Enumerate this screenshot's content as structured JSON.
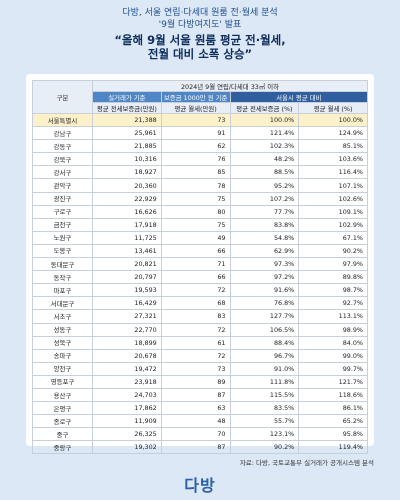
{
  "header": {
    "lines": [
      "다방, 서울 연립·다세대 원룸 전·월세 분석",
      "'9월 다방여지도' 발표"
    ],
    "title": [
      "“올해 9월 서울 원룸 평균 전·월세,",
      "전월 대비 소폭 상승”"
    ]
  },
  "table": {
    "corner": "구분",
    "group": "2024년 9월 연립/다세대 33㎡ 이하",
    "subgroups": [
      "실거래가 기준",
      "보증금 1000만 원 기준",
      "서울시 평균 대비"
    ],
    "columns": [
      "평균 전세보증금(만원)",
      "평균 월세(만원)",
      "평균 전세보증금 (%)",
      "평균 월세 (%)"
    ],
    "rows": [
      [
        "서울특별시",
        "21,388",
        "73",
        "100.0%",
        "100.0%"
      ],
      [
        "강남구",
        "25,961",
        "91",
        "121.4%",
        "124.9%"
      ],
      [
        "강동구",
        "21,885",
        "62",
        "102.3%",
        "85.1%"
      ],
      [
        "강북구",
        "10,316",
        "76",
        "48.2%",
        "103.6%"
      ],
      [
        "강서구",
        "18,927",
        "85",
        "88.5%",
        "116.4%"
      ],
      [
        "관악구",
        "20,360",
        "78",
        "95.2%",
        "107.1%"
      ],
      [
        "광진구",
        "22,929",
        "75",
        "107.2%",
        "102.6%"
      ],
      [
        "구로구",
        "16,626",
        "80",
        "77.7%",
        "109.1%"
      ],
      [
        "금천구",
        "17,918",
        "75",
        "83.8%",
        "102.9%"
      ],
      [
        "노원구",
        "11,725",
        "49",
        "54.8%",
        "67.1%"
      ],
      [
        "도봉구",
        "13,461",
        "66",
        "62.9%",
        "90.2%"
      ],
      [
        "동대문구",
        "20,821",
        "71",
        "97.3%",
        "97.9%"
      ],
      [
        "동작구",
        "20,797",
        "66",
        "97.2%",
        "89.8%"
      ],
      [
        "마포구",
        "19,593",
        "72",
        "91.6%",
        "98.7%"
      ],
      [
        "서대문구",
        "16,429",
        "68",
        "76.8%",
        "92.7%"
      ],
      [
        "서초구",
        "27,321",
        "83",
        "127.7%",
        "113.1%"
      ],
      [
        "성동구",
        "22,770",
        "72",
        "106.5%",
        "98.9%"
      ],
      [
        "성북구",
        "18,899",
        "61",
        "88.4%",
        "84.0%"
      ],
      [
        "송파구",
        "20,678",
        "72",
        "96.7%",
        "99.0%"
      ],
      [
        "양천구",
        "19,472",
        "73",
        "91.0%",
        "99.7%"
      ],
      [
        "영등포구",
        "23,918",
        "89",
        "111.8%",
        "121.7%"
      ],
      [
        "용산구",
        "24,703",
        "87",
        "115.5%",
        "118.6%"
      ],
      [
        "은평구",
        "17,862",
        "63",
        "83.5%",
        "86.1%"
      ],
      [
        "종로구",
        "11,909",
        "48",
        "55.7%",
        "65.2%"
      ],
      [
        "중구",
        "26,325",
        "70",
        "123.1%",
        "95.8%"
      ],
      [
        "중랑구",
        "19,302",
        "87",
        "90.2%",
        "119.4%"
      ]
    ]
  },
  "source": "자료: 다방, 국토교통부 실거래가 공개시스템 분석",
  "logo": "다방"
}
